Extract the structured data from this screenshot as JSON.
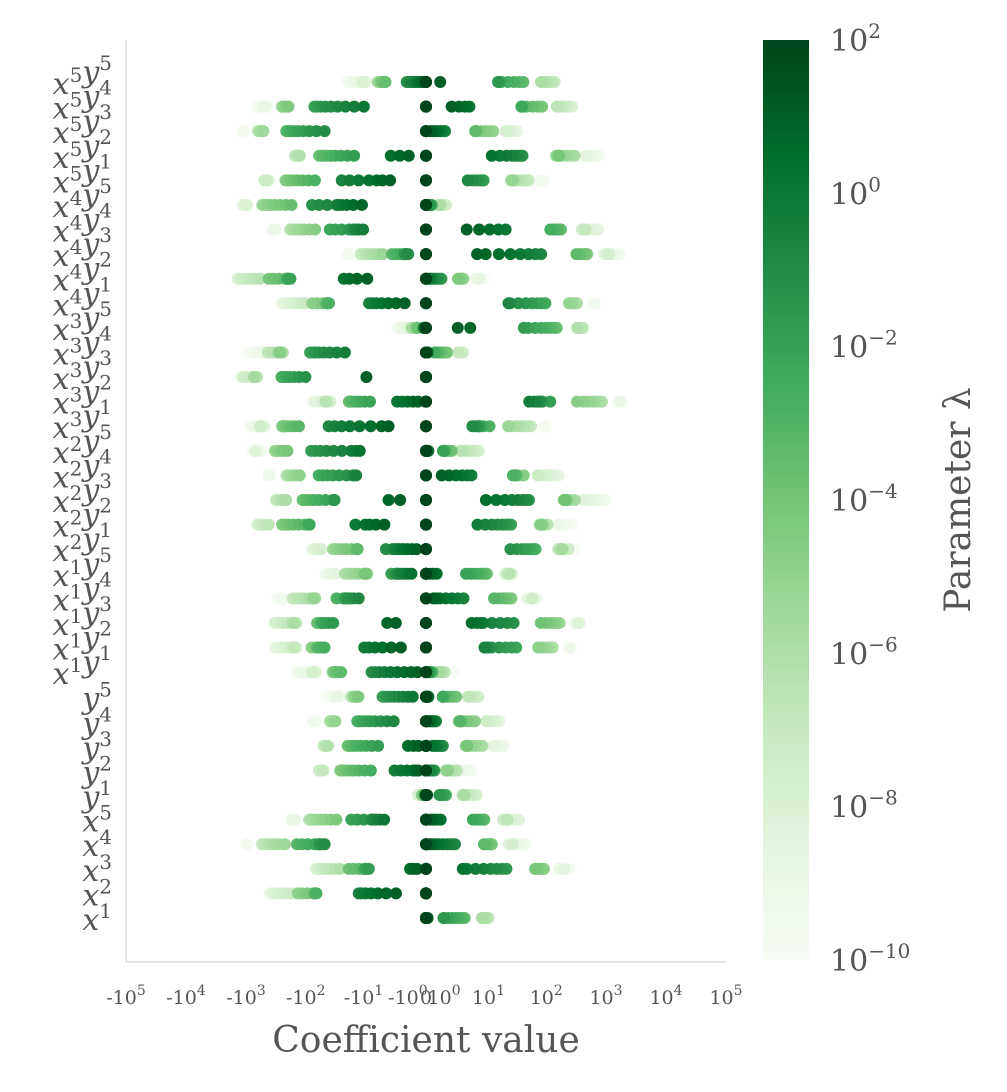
{
  "chart_data": {
    "type": "scatter",
    "title": "",
    "xlabel": "Coefficient value",
    "ylabel": "",
    "x_scale": "symlog",
    "xlim": [
      -100000,
      100000
    ],
    "x_ticks": [
      {
        "value": -100000,
        "base": "-10",
        "exp": "5"
      },
      {
        "value": -10000,
        "base": "-10",
        "exp": "4"
      },
      {
        "value": -1000,
        "base": "-10",
        "exp": "3"
      },
      {
        "value": -100,
        "base": "-10",
        "exp": "2"
      },
      {
        "value": -10,
        "base": "-10",
        "exp": "1"
      },
      {
        "value": -1,
        "base": "-10",
        "exp": "0"
      },
      {
        "value": 0,
        "base": "0",
        "exp": ""
      },
      {
        "value": 1,
        "base": "10",
        "exp": "0"
      },
      {
        "value": 10,
        "base": "10",
        "exp": "1"
      },
      {
        "value": 100,
        "base": "10",
        "exp": "2"
      },
      {
        "value": 1000,
        "base": "10",
        "exp": "3"
      },
      {
        "value": 10000,
        "base": "10",
        "exp": "4"
      },
      {
        "value": 100000,
        "base": "10",
        "exp": "5"
      }
    ],
    "y_terms": [
      {
        "t1": "x",
        "e1": "5",
        "t2": "y",
        "e2": "5",
        "min": -20,
        "max": 250
      },
      {
        "t1": "x",
        "e1": "5",
        "t2": "y",
        "e2": "4",
        "min": -800,
        "max": 400
      },
      {
        "t1": "x",
        "e1": "5",
        "t2": "y",
        "e2": "3",
        "min": -1500,
        "max": 40
      },
      {
        "t1": "x",
        "e1": "5",
        "t2": "y",
        "e2": "2",
        "min": -300,
        "max": 800
      },
      {
        "t1": "x",
        "e1": "5",
        "t2": "y",
        "e2": "1",
        "min": -800,
        "max": 100
      },
      {
        "t1": "x",
        "e1": "4",
        "t2": "y",
        "e2": "5",
        "min": -1500,
        "max": 2
      },
      {
        "t1": "x",
        "e1": "4",
        "t2": "y",
        "e2": "4",
        "min": -400,
        "max": 1000
      },
      {
        "t1": "x",
        "e1": "4",
        "t2": "y",
        "e2": "3",
        "min": -20,
        "max": 2000
      },
      {
        "t1": "x",
        "e1": "4",
        "t2": "y",
        "e2": "2",
        "min": -2000,
        "max": 10
      },
      {
        "t1": "x",
        "e1": "4",
        "t2": "y",
        "e2": "1",
        "min": -300,
        "max": 800
      },
      {
        "t1": "x",
        "e1": "3",
        "t2": "y",
        "e2": "5",
        "min": -2,
        "max": 800
      },
      {
        "t1": "x",
        "e1": "3",
        "t2": "y",
        "e2": "4",
        "min": -1000,
        "max": 5
      },
      {
        "t1": "x",
        "e1": "3",
        "t2": "y",
        "e2": "3",
        "min": -2000,
        "max": 0
      },
      {
        "t1": "x",
        "e1": "3",
        "t2": "y",
        "e2": "2",
        "min": -100,
        "max": 2000
      },
      {
        "t1": "x",
        "e1": "3",
        "t2": "y",
        "e2": "1",
        "min": -1000,
        "max": 100
      },
      {
        "t1": "x",
        "e1": "2",
        "t2": "y",
        "e2": "5",
        "min": -1000,
        "max": 10
      },
      {
        "t1": "x",
        "e1": "2",
        "t2": "y",
        "e2": "4",
        "min": -500,
        "max": 200
      },
      {
        "t1": "x",
        "e1": "2",
        "t2": "y",
        "e2": "3",
        "min": -600,
        "max": 1000
      },
      {
        "t1": "x",
        "e1": "2",
        "t2": "y",
        "e2": "2",
        "min": -1000,
        "max": 300
      },
      {
        "t1": "x",
        "e1": "2",
        "t2": "y",
        "e2": "1",
        "min": -100,
        "max": 500
      },
      {
        "t1": "x",
        "e1": "1",
        "t2": "y",
        "e2": "5",
        "min": -50,
        "max": 50
      },
      {
        "t1": "x",
        "e1": "1",
        "t2": "y",
        "e2": "4",
        "min": -300,
        "max": 100
      },
      {
        "t1": "x",
        "e1": "1",
        "t2": "y",
        "e2": "3",
        "min": -500,
        "max": 500
      },
      {
        "t1": "x",
        "e1": "1",
        "t2": "y",
        "e2": "2",
        "min": -400,
        "max": 300
      },
      {
        "t1": "x",
        "e1": "1",
        "t2": "y",
        "e2": "1",
        "min": -150,
        "max": 2
      },
      {
        "t1": "y",
        "e1": "5",
        "t2": "",
        "e2": "",
        "min": -50,
        "max": 10
      },
      {
        "t1": "y",
        "e1": "4",
        "t2": "",
        "e2": "",
        "min": -100,
        "max": 20
      },
      {
        "t1": "y",
        "e1": "3",
        "t2": "",
        "e2": "",
        "min": -100,
        "max": 20
      },
      {
        "t1": "y",
        "e1": "2",
        "t2": "",
        "e2": "",
        "min": -100,
        "max": 5
      },
      {
        "t1": "y",
        "e1": "1",
        "t2": "",
        "e2": "",
        "min": -0.5,
        "max": 10
      },
      {
        "t1": "x",
        "e1": "5",
        "t2": "",
        "e2": "",
        "min": -200,
        "max": 50
      },
      {
        "t1": "x",
        "e1": "4",
        "t2": "",
        "e2": "",
        "min": -1000,
        "max": 50
      },
      {
        "t1": "x",
        "e1": "3",
        "t2": "",
        "e2": "",
        "min": -100,
        "max": 300
      },
      {
        "t1": "x",
        "e1": "2",
        "t2": "",
        "e2": "",
        "min": -500,
        "max": 0
      },
      {
        "t1": "x",
        "e1": "1",
        "t2": "",
        "e2": "",
        "min": 0,
        "max": 20
      }
    ],
    "colorbar": {
      "label": "Parameter λ",
      "scale": "log",
      "range": [
        1e-10,
        100
      ],
      "ticks": [
        {
          "value": 100,
          "base": "10",
          "exp": "2"
        },
        {
          "value": 1,
          "base": "10",
          "exp": "0"
        },
        {
          "value": 0.01,
          "base": "10",
          "exp": "−2"
        },
        {
          "value": 0.0001,
          "base": "10",
          "exp": "−4"
        },
        {
          "value": 1e-06,
          "base": "10",
          "exp": "−6"
        },
        {
          "value": 1e-08,
          "base": "10",
          "exp": "−8"
        },
        {
          "value": 1e-10,
          "base": "10",
          "exp": "−10"
        }
      ],
      "colormap": "Greens",
      "color_low": "#f7fcf5",
      "color_mid": "#74c476",
      "color_high": "#00441b"
    },
    "grid": false,
    "legend": "none"
  }
}
